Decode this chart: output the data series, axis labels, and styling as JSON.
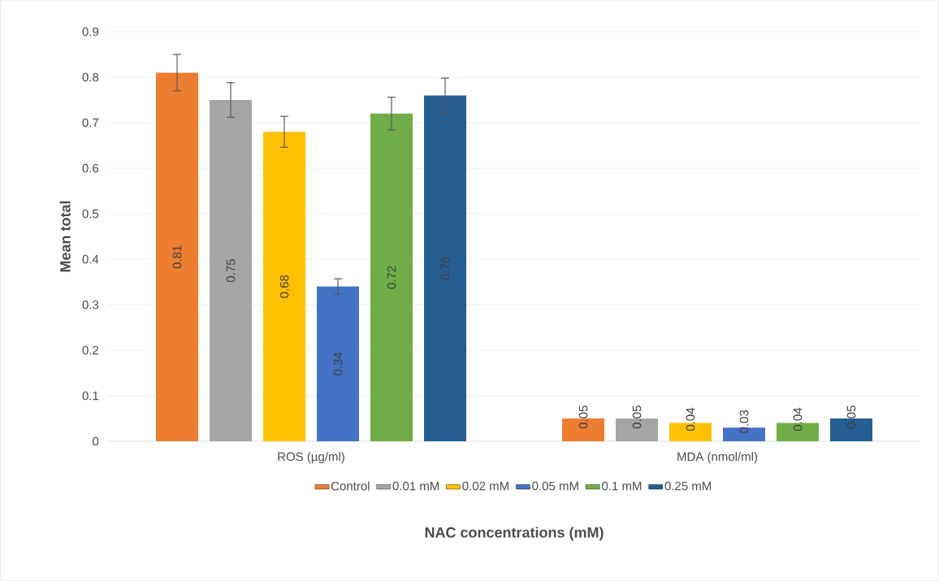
{
  "chart_data": {
    "type": "bar",
    "xlabel": "NAC concentrations (mM)",
    "ylabel": "Mean total",
    "categories": [
      "ROS (µg/ml)",
      "MDA (nmol/ml)"
    ],
    "series": [
      {
        "name": "Control",
        "color": "#ed7d31",
        "values": [
          0.81,
          0.05
        ],
        "errors": [
          0.04,
          null
        ]
      },
      {
        "name": "0.01 mM",
        "color": "#a5a5a5",
        "values": [
          0.75,
          0.05
        ],
        "errors": [
          0.038,
          null
        ]
      },
      {
        "name": "0.02 mM",
        "color": "#ffc000",
        "values": [
          0.68,
          0.04
        ],
        "errors": [
          0.034,
          null
        ]
      },
      {
        "name": "0.05 mM",
        "color": "#4472c4",
        "values": [
          0.34,
          0.03
        ],
        "errors": [
          0.017,
          null
        ]
      },
      {
        "name": "0.1 mM",
        "color": "#70ad47",
        "values": [
          0.72,
          0.04
        ],
        "errors": [
          0.036,
          null
        ]
      },
      {
        "name": "0.25 mM",
        "color": "#255e91",
        "values": [
          0.76,
          0.05
        ],
        "errors": [
          0.038,
          null
        ]
      }
    ],
    "ylim": [
      0,
      0.9
    ],
    "yticks": [
      0,
      0.1,
      0.2,
      0.3,
      0.4,
      0.5,
      0.6,
      0.7,
      0.8,
      0.9
    ],
    "grid": "y",
    "legend": "bottom",
    "data_labels": true
  }
}
